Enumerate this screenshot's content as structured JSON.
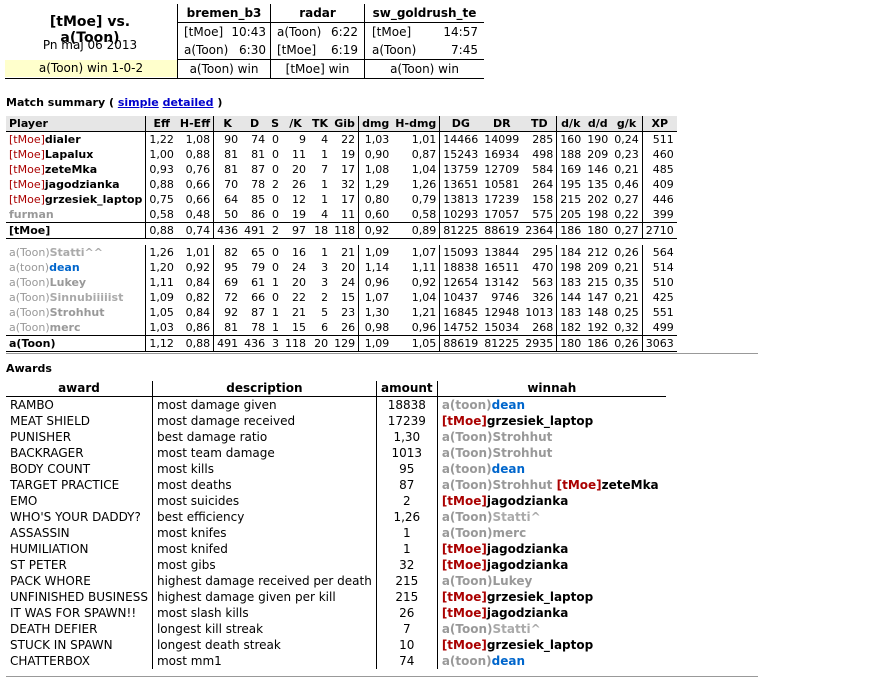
{
  "header": {
    "title": "[tMoe] vs. a(Toon)",
    "date": "Pn maj 06 2013",
    "result": "a(Toon) win 1-0-2"
  },
  "maps": [
    {
      "name": "bremen_b3",
      "rows": [
        [
          "[tMoe]",
          "10:43"
        ],
        [
          "a(Toon)",
          "6:30"
        ]
      ],
      "winner": "a(Toon) win"
    },
    {
      "name": "radar",
      "rows": [
        [
          "a(Toon)",
          "6:22"
        ],
        [
          "[tMoe]",
          "6:19"
        ]
      ],
      "winner": "[tMoe] win"
    },
    {
      "name": "sw_goldrush_te",
      "rows": [
        [
          "[tMoe]",
          "14:57"
        ],
        [
          "a(Toon)",
          "7:45"
        ]
      ],
      "winner": "a(Toon) win"
    }
  ],
  "summary": {
    "label": "Match summary (",
    "link_simple": "simple",
    "link_detailed": "detailed",
    "close": ")"
  },
  "stats": {
    "columns": [
      "Player",
      "Eff",
      "H-Eff",
      "K",
      "D",
      "S",
      "/K",
      "TK",
      "Gib",
      "dmg",
      "H-dmg",
      "DG",
      "DR",
      "TD",
      "d/k",
      "d/d",
      "g/k",
      "XP"
    ],
    "team1": [
      {
        "tag": "[tMoe]",
        "name": "dialer",
        "style": "plain",
        "v": [
          "1,22",
          "1,08",
          "90",
          "74",
          "0",
          "9",
          "4",
          "22",
          "1,03",
          "1,01",
          "14466",
          "14099",
          "285",
          "160",
          "190",
          "0,24",
          "511"
        ]
      },
      {
        "tag": "[tMoe]",
        "name": "Lapalux",
        "style": "plain",
        "v": [
          "1,00",
          "0,88",
          "81",
          "81",
          "0",
          "11",
          "1",
          "19",
          "0,90",
          "0,87",
          "15243",
          "16934",
          "498",
          "188",
          "209",
          "0,23",
          "460"
        ]
      },
      {
        "tag": "[tMoe]",
        "name": "zeteMka",
        "style": "plain",
        "v": [
          "0,93",
          "0,76",
          "81",
          "87",
          "0",
          "20",
          "7",
          "17",
          "1,08",
          "1,04",
          "13759",
          "12709",
          "584",
          "169",
          "146",
          "0,21",
          "485"
        ]
      },
      {
        "tag": "[tMoe]",
        "name": "jagodzianka",
        "style": "plain",
        "v": [
          "0,88",
          "0,66",
          "70",
          "78",
          "2",
          "26",
          "1",
          "32",
          "1,29",
          "1,26",
          "13651",
          "10581",
          "264",
          "195",
          "135",
          "0,46",
          "409"
        ]
      },
      {
        "tag": "[tMoe]",
        "name": "grzesiek_laptop",
        "style": "plain",
        "v": [
          "0,75",
          "0,66",
          "64",
          "85",
          "0",
          "12",
          "1",
          "17",
          "0,80",
          "0,79",
          "13813",
          "17239",
          "158",
          "215",
          "202",
          "0,27",
          "446"
        ]
      },
      {
        "tag": "",
        "name": "furman",
        "style": "gray",
        "v": [
          "0,58",
          "0,48",
          "50",
          "86",
          "0",
          "19",
          "4",
          "11",
          "0,60",
          "0,58",
          "10293",
          "17057",
          "575",
          "205",
          "198",
          "0,22",
          "399"
        ]
      }
    ],
    "team1_total": {
      "name": "[tMoe]",
      "v": [
        "0,88",
        "0,74",
        "436",
        "491",
        "2",
        "97",
        "18",
        "118",
        "0,92",
        "0,89",
        "81225",
        "88619",
        "2364",
        "186",
        "180",
        "0,27",
        "2710"
      ]
    },
    "team2": [
      {
        "tag": "a(Toon)",
        "name": "Statti^^",
        "style": "ghost",
        "v": [
          "1,26",
          "1,01",
          "82",
          "65",
          "0",
          "16",
          "1",
          "21",
          "1,09",
          "1,07",
          "15093",
          "13844",
          "295",
          "184",
          "212",
          "0,26",
          "564"
        ]
      },
      {
        "tag": "a(toon)",
        "name": "dean",
        "style": "blue",
        "v": [
          "1,20",
          "0,92",
          "95",
          "79",
          "0",
          "24",
          "3",
          "20",
          "1,14",
          "1,11",
          "18838",
          "16511",
          "470",
          "198",
          "209",
          "0,21",
          "514"
        ]
      },
      {
        "tag": "a(Toon)",
        "name": "Lukey",
        "style": "gray",
        "v": [
          "1,11",
          "0,84",
          "69",
          "61",
          "1",
          "20",
          "3",
          "24",
          "0,96",
          "0,92",
          "12654",
          "13142",
          "563",
          "183",
          "215",
          "0,35",
          "510"
        ]
      },
      {
        "tag": "a(Toon)",
        "name": "Sinnubiiiiist",
        "style": "ghost",
        "v": [
          "1,09",
          "0,82",
          "72",
          "66",
          "0",
          "22",
          "2",
          "15",
          "1,07",
          "1,04",
          "10437",
          "9746",
          "326",
          "144",
          "147",
          "0,21",
          "425"
        ]
      },
      {
        "tag": "a(Toon)",
        "name": "Strohhut",
        "style": "gray",
        "v": [
          "1,05",
          "0,84",
          "92",
          "87",
          "1",
          "21",
          "5",
          "23",
          "1,30",
          "1,21",
          "16845",
          "12948",
          "1013",
          "183",
          "148",
          "0,25",
          "551"
        ]
      },
      {
        "tag": "a(Toon)",
        "name": "merc",
        "style": "gray",
        "v": [
          "1,03",
          "0,86",
          "81",
          "78",
          "1",
          "15",
          "6",
          "26",
          "0,98",
          "0,96",
          "14752",
          "15034",
          "268",
          "182",
          "192",
          "0,32",
          "499"
        ]
      }
    ],
    "team2_total": {
      "name": "a(Toon)",
      "v": [
        "1,12",
        "0,88",
        "491",
        "436",
        "3",
        "118",
        "20",
        "129",
        "1,09",
        "1,05",
        "88619",
        "81225",
        "2935",
        "180",
        "186",
        "0,26",
        "3063"
      ]
    }
  },
  "awards": {
    "label": "Awards",
    "columns": [
      "award",
      "description",
      "amount",
      "winnah"
    ],
    "rows": [
      {
        "award": "RAMBO",
        "desc": "most damage given",
        "amount": "18838",
        "winners": [
          {
            "tag": "a(toon)",
            "name": "dean",
            "style": "blue"
          }
        ]
      },
      {
        "award": "MEAT SHIELD",
        "desc": "most damage received",
        "amount": "17239",
        "winners": [
          {
            "tag": "[tMoe]",
            "name": "grzesiek_laptop",
            "style": "plain"
          }
        ]
      },
      {
        "award": "PUNISHER",
        "desc": "best damage ratio",
        "amount": "1,30",
        "winners": [
          {
            "tag": "a(Toon)",
            "name": "Strohhut",
            "style": "gray"
          }
        ]
      },
      {
        "award": "BACKRAGER",
        "desc": "most team damage",
        "amount": "1013",
        "winners": [
          {
            "tag": "a(Toon)",
            "name": "Strohhut",
            "style": "gray"
          }
        ]
      },
      {
        "award": "BODY COUNT",
        "desc": "most kills",
        "amount": "95",
        "winners": [
          {
            "tag": "a(toon)",
            "name": "dean",
            "style": "blue"
          }
        ]
      },
      {
        "award": "TARGET PRACTICE",
        "desc": "most deaths",
        "amount": "87",
        "winners": [
          {
            "tag": "a(Toon)",
            "name": "Strohhut",
            "style": "gray"
          },
          {
            "tag": "[tMoe]",
            "name": "zeteMka",
            "style": "plain"
          }
        ]
      },
      {
        "award": "EMO",
        "desc": "most suicides",
        "amount": "2",
        "winners": [
          {
            "tag": "[tMoe]",
            "name": "jagodzianka",
            "style": "plain"
          }
        ]
      },
      {
        "award": "WHO'S YOUR DADDY?",
        "desc": "best efficiency",
        "amount": "1,26",
        "winners": [
          {
            "tag": "a(Toon)",
            "name": "Statti^",
            "style": "ghost"
          }
        ]
      },
      {
        "award": "ASSASSIN",
        "desc": "most knifes",
        "amount": "1",
        "winners": [
          {
            "tag": "a(Toon)",
            "name": "merc",
            "style": "gray"
          }
        ]
      },
      {
        "award": "HUMILIATION",
        "desc": "most knifed",
        "amount": "1",
        "winners": [
          {
            "tag": "[tMoe]",
            "name": "jagodzianka",
            "style": "plain"
          }
        ]
      },
      {
        "award": "ST PETER",
        "desc": "most gibs",
        "amount": "32",
        "winners": [
          {
            "tag": "[tMoe]",
            "name": "jagodzianka",
            "style": "plain"
          }
        ]
      },
      {
        "award": "PACK WHORE",
        "desc": "highest damage received per death",
        "amount": "215",
        "winners": [
          {
            "tag": "a(Toon)",
            "name": "Lukey",
            "style": "gray"
          }
        ]
      },
      {
        "award": "UNFINISHED BUSINESS",
        "desc": "highest damage given per kill",
        "amount": "215",
        "winners": [
          {
            "tag": "[tMoe]",
            "name": "grzesiek_laptop",
            "style": "plain"
          }
        ]
      },
      {
        "award": "IT WAS FOR SPAWN!!",
        "desc": "most slash kills",
        "amount": "26",
        "winners": [
          {
            "tag": "[tMoe]",
            "name": "jagodzianka",
            "style": "plain"
          }
        ]
      },
      {
        "award": "DEATH DEFIER",
        "desc": "longest kill streak",
        "amount": "7",
        "winners": [
          {
            "tag": "a(Toon)",
            "name": "Statti^",
            "style": "ghost"
          }
        ]
      },
      {
        "award": "STUCK IN SPAWN",
        "desc": "longest death streak",
        "amount": "10",
        "winners": [
          {
            "tag": "[tMoe]",
            "name": "grzesiek_laptop",
            "style": "plain"
          }
        ]
      },
      {
        "award": "CHATTERBOX",
        "desc": "most mm1",
        "amount": "74",
        "winners": [
          {
            "tag": "a(toon)",
            "name": "dean",
            "style": "blue"
          }
        ]
      }
    ]
  }
}
